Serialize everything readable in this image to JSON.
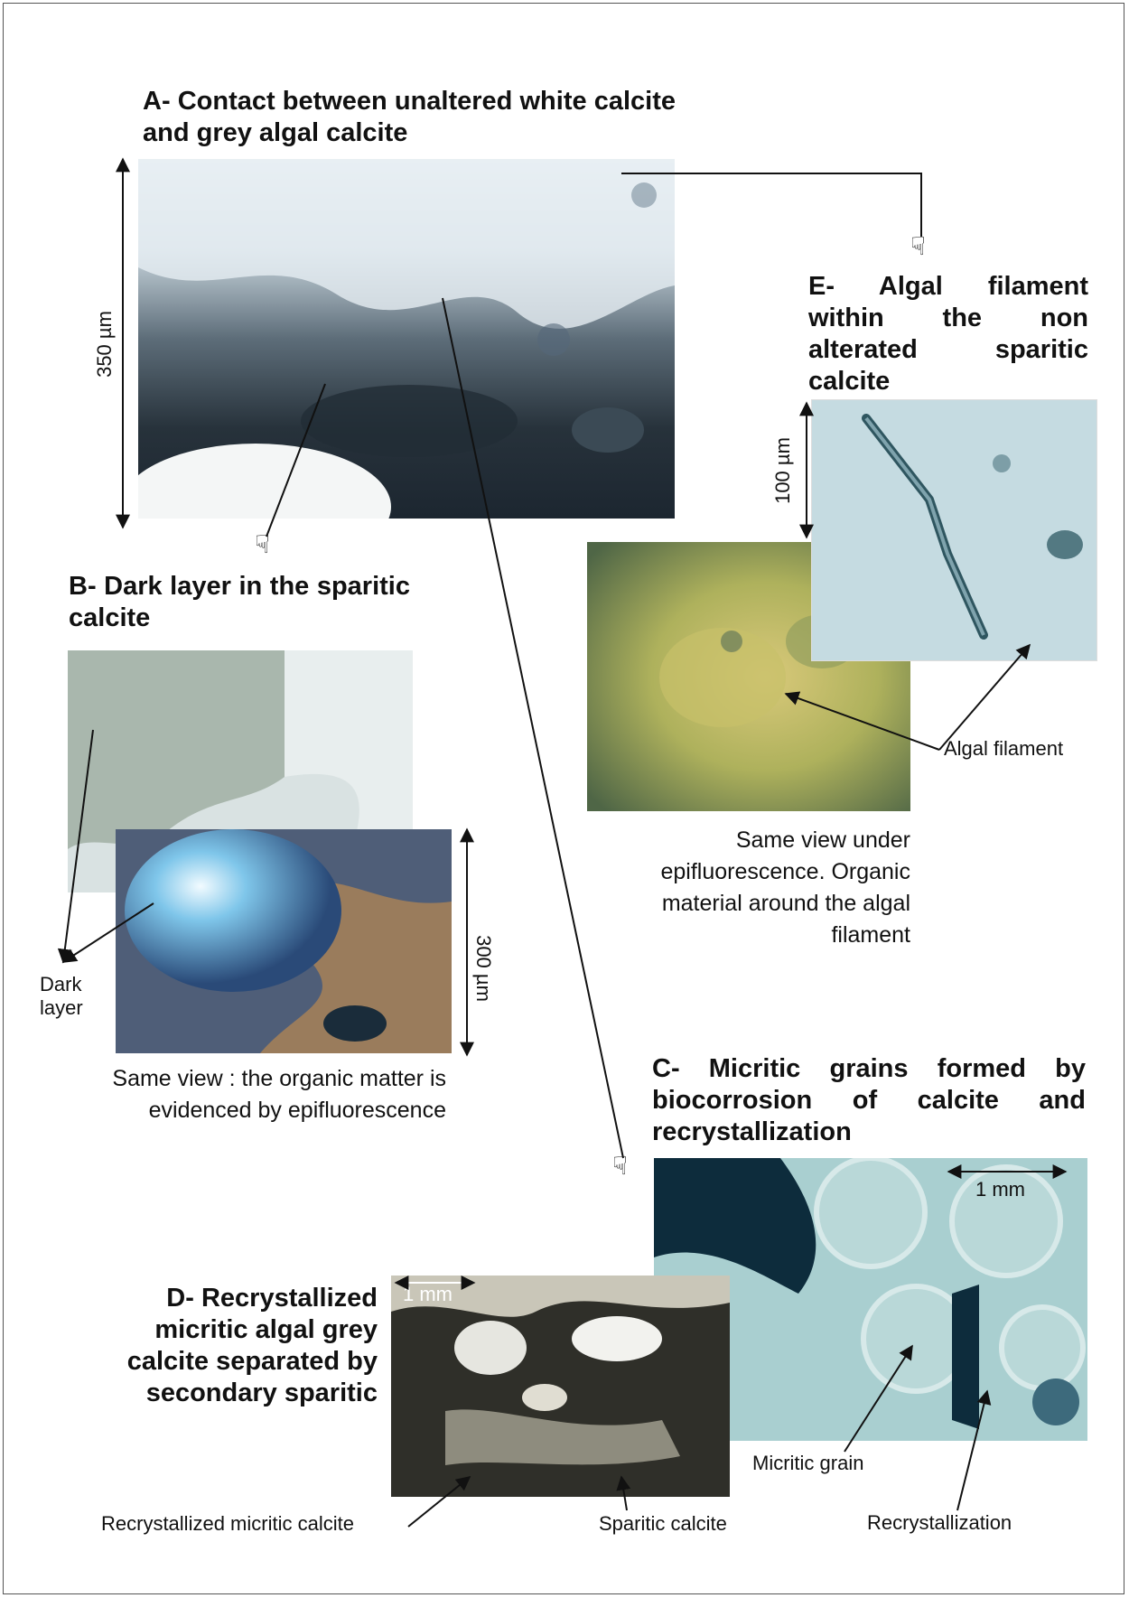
{
  "panels": {
    "a": {
      "title": "A- Contact between unaltered white calcite and grey algal calcite",
      "scale": "350 µm"
    },
    "b": {
      "title": "B- Dark layer in the sparitic calcite",
      "scale": "300 µm",
      "label_dark_layer": "Dark layer",
      "caption": "Same view : the organic matter is evidenced by epifluorescence"
    },
    "c": {
      "title": "C- Micritic grains formed by biocorrosion of calcite and recrystallization",
      "scale": "1 mm",
      "label_micritic_grain": "Micritic grain",
      "label_recrystallization": "Recrystallization"
    },
    "d": {
      "title": "D- Recrystallized micritic algal grey calcite separated by secondary sparitic",
      "scale": "1 mm",
      "label_recrystallized": "Recrystallized micritic calcite",
      "label_sparitic": "Sparitic calcite"
    },
    "e": {
      "title": "E- Algal filament within the non alterated sparitic calcite",
      "scale": "100 µm",
      "label_algal_filament": "Algal filament",
      "caption": "Same view under epifluorescence. Organic material around the algal filament"
    }
  },
  "colors": {
    "photo_a_light": "#e6eef2",
    "photo_a_dark": "#1c2630",
    "photo_b_grey": "#a9b7ad",
    "photo_b_fluor": "#7fc6ea",
    "photo_b_brown": "#9a7c5c",
    "photo_c_base": "#a9cfd0",
    "photo_c_dark": "#0d2c3c",
    "photo_d_base": "#c9c6b8",
    "photo_d_dark": "#14140f",
    "photo_e_base": "#bcd5dc",
    "photo_e_fluor": "#c7c06a"
  }
}
